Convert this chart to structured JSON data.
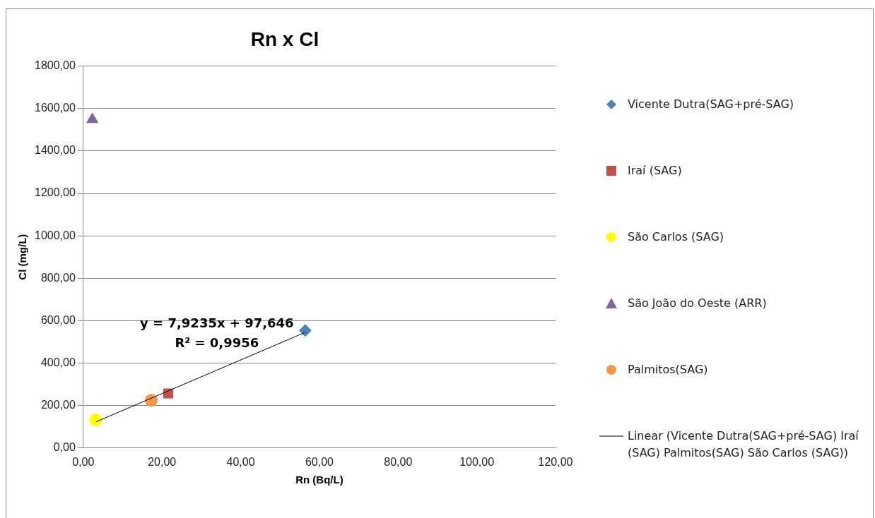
{
  "chart_data": {
    "type": "scatter",
    "title": "Rn x Cl",
    "xlabel": "Rn (Bq/L)",
    "ylabel": "Cl (mg/L)",
    "xlim": [
      0,
      120
    ],
    "xticks": [
      {
        "value": 0,
        "label": "0,00"
      },
      {
        "value": 20,
        "label": "20,00"
      },
      {
        "value": 40,
        "label": "40,00"
      },
      {
        "value": 60,
        "label": "60,00"
      },
      {
        "value": 80,
        "label": "80,00"
      },
      {
        "value": 100,
        "label": "100,00"
      },
      {
        "value": 120,
        "label": "120,00"
      }
    ],
    "ylim": [
      0,
      1800
    ],
    "yticks": [
      {
        "value": 0,
        "label": "0,00"
      },
      {
        "value": 200,
        "label": "200,00"
      },
      {
        "value": 400,
        "label": "400,00"
      },
      {
        "value": 600,
        "label": "600,00"
      },
      {
        "value": 800,
        "label": "800,00"
      },
      {
        "value": 1000,
        "label": "1000,00"
      },
      {
        "value": 1200,
        "label": "1200,00"
      },
      {
        "value": 1400,
        "label": "1400,00"
      },
      {
        "value": 1600,
        "label": "1600,00"
      },
      {
        "value": 1800,
        "label": "1800,00"
      }
    ],
    "grid": "y",
    "legend": "right",
    "series": [
      {
        "name": "Vicente Dutra(SAG+pré-SAG)",
        "color": "#4f81bd",
        "marker": "diamond",
        "x": [
          56.4
        ],
        "values": [
          554
        ]
      },
      {
        "name": "Iraí (SAG)",
        "color": "#c0504d",
        "marker": "square",
        "x": [
          21.6
        ],
        "values": [
          257
        ]
      },
      {
        "name": "São Carlos (SAG)",
        "color": "#ffff00",
        "marker": "circle",
        "x": [
          3.2
        ],
        "values": [
          132
        ]
      },
      {
        "name": "São João do Oeste (ARR)",
        "color": "#8064a2",
        "marker": "triangle",
        "x": [
          2.3
        ],
        "values": [
          1548
        ]
      },
      {
        "name": "Palmitos(SAG)",
        "color": "#f79646",
        "marker": "circle",
        "x": [
          17.3
        ],
        "values": [
          225
        ]
      },
      {
        "name": "Linear (Vicente Dutra(SAG+pré-SAG) Iraí (SAG) Palmitos(SAG) São Carlos (SAG))",
        "type": "line",
        "color": "#000000",
        "marker": "none",
        "x": [
          3.2,
          56.4
        ],
        "values": [
          123,
          545
        ]
      }
    ],
    "annotations": [
      "y = 7,9235x + 97,646",
      "R² = 0,9956"
    ]
  }
}
